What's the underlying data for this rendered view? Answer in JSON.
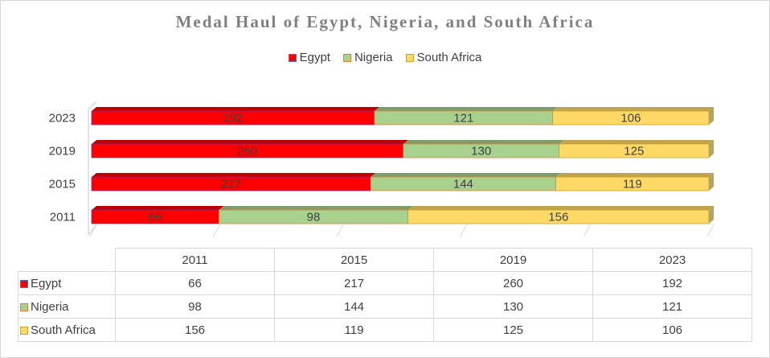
{
  "chart_data": {
    "type": "bar",
    "orientation": "horizontal",
    "stacked": true,
    "title": "Medal Haul of Egypt, Nigeria, and South Africa",
    "categories": [
      "2011",
      "2015",
      "2019",
      "2023"
    ],
    "series": [
      {
        "name": "Egypt",
        "color": "#ff0000",
        "values": [
          66,
          217,
          260,
          192
        ]
      },
      {
        "name": "Nigeria",
        "color": "#a9d18e",
        "values": [
          98,
          144,
          130,
          121
        ]
      },
      {
        "name": "South Africa",
        "color": "#ffd966",
        "values": [
          156,
          119,
          125,
          106
        ]
      }
    ],
    "legend_position": "top",
    "data_table": true,
    "grid": true
  }
}
